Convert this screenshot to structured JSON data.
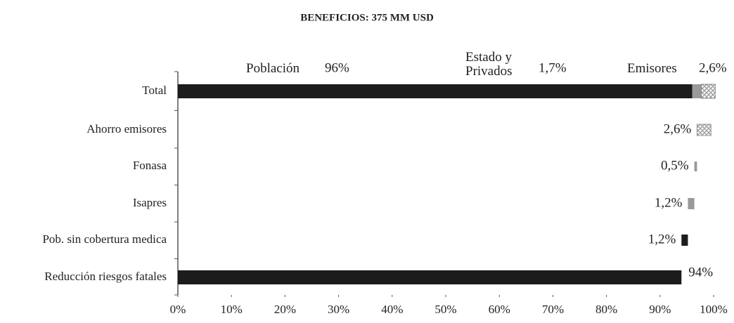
{
  "chart_data": {
    "type": "waterfall-bar",
    "title": "BENEFICIOS: 375 MM USD",
    "categories": [
      "Total",
      "Ahorro emisores",
      "Fonasa",
      "Isapres",
      "Pob. sin cobertura medica",
      "Reducción riesgos fatales"
    ],
    "series": [
      {
        "name": "Población",
        "color": "#1c1c1c",
        "values": [
          96,
          null,
          null,
          null,
          1.2,
          94
        ],
        "value_labels": [
          "96%",
          null,
          null,
          null,
          "1,2%",
          "94%"
        ]
      },
      {
        "name": "Estado y Privados",
        "color": "#9a9a9a",
        "values": [
          1.7,
          null,
          0.5,
          1.2,
          null,
          null
        ],
        "value_labels": [
          "1,7%",
          null,
          "0,5%",
          "1,2%",
          null,
          null
        ]
      },
      {
        "name": "Emisores",
        "color": "#777777",
        "values": [
          2.6,
          2.6,
          null,
          null,
          null,
          null
        ],
        "value_labels": [
          "2,6%",
          "2,6%",
          null,
          null,
          null,
          null
        ]
      }
    ],
    "xlim": [
      0,
      100
    ],
    "xticks": [
      {
        "value": 0,
        "label": "0%"
      },
      {
        "value": 10,
        "label": "10%"
      },
      {
        "value": 20,
        "label": "20%"
      },
      {
        "value": 30,
        "label": "30%"
      },
      {
        "value": 40,
        "label": "40%"
      },
      {
        "value": 50,
        "label": "50%"
      },
      {
        "value": 60,
        "label": "60%"
      },
      {
        "value": 70,
        "label": "70%"
      },
      {
        "value": 80,
        "label": "80%"
      },
      {
        "value": 90,
        "label": "90%"
      },
      {
        "value": 100,
        "label": "100%"
      }
    ]
  }
}
